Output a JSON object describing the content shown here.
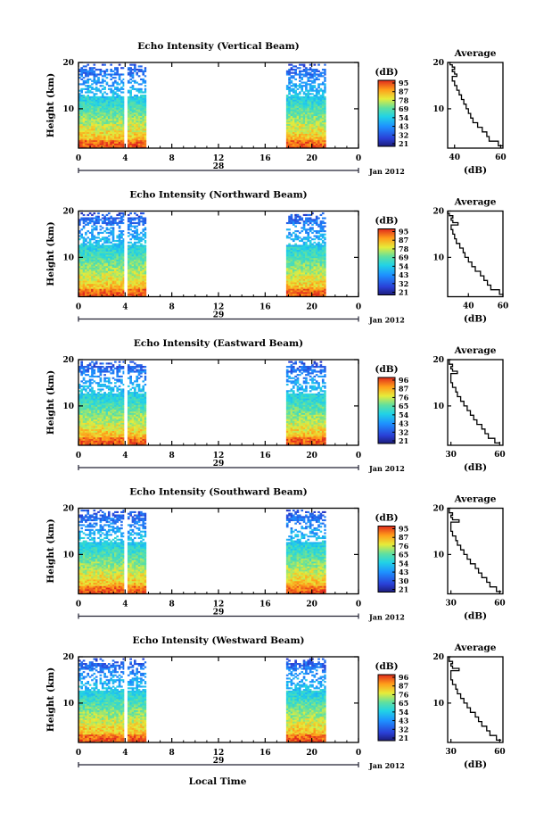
{
  "figure": {
    "time_axis_label": "Local Time",
    "date_label": "Jan 2012"
  },
  "chart_data": [
    {
      "type": "heatmap",
      "title": "Echo Intensity (Vertical Beam)",
      "ylabel": "Height (km)",
      "xlabel": "Local Time",
      "x_ticks": [
        "0",
        "4",
        "8",
        "12",
        "16",
        "20",
        "0"
      ],
      "day_label": "28",
      "y_ticks": [
        "20",
        "10"
      ],
      "xlim_hours": [
        0,
        24
      ],
      "ylim_km": [
        1.5,
        20
      ],
      "data_windows_hours": [
        [
          0,
          3.9
        ],
        [
          4.2,
          5.8
        ],
        [
          17.8,
          21.2
        ]
      ],
      "colorbar": {
        "title": "(dB)",
        "ticks": [
          "95",
          "87",
          "78",
          "69",
          "54",
          "43",
          "32",
          "21"
        ]
      },
      "profile": {
        "title": "Average",
        "xlabel": "(dB)",
        "x_ticks": [
          "40",
          "60"
        ],
        "xlim": [
          37,
          61
        ],
        "y_ticks": [
          "20",
          "10"
        ],
        "heights_km": [
          2,
          3,
          4,
          5,
          6,
          7,
          8,
          9,
          10,
          11,
          12,
          13,
          14,
          15,
          16,
          17,
          17.5,
          18,
          18.5,
          19,
          19.5,
          20
        ],
        "values_db": [
          61,
          59,
          55,
          54,
          52,
          50,
          48,
          47,
          46,
          45,
          44,
          43,
          42,
          41,
          40,
          39,
          41,
          40,
          39,
          40,
          39,
          38
        ]
      }
    },
    {
      "type": "heatmap",
      "title": "Echo Intensity (Northward Beam)",
      "ylabel": "Height (km)",
      "xlabel": "Local Time",
      "x_ticks": [
        "0",
        "4",
        "8",
        "12",
        "16",
        "20",
        "0"
      ],
      "day_label": "29",
      "y_ticks": [
        "20",
        "10"
      ],
      "xlim_hours": [
        0,
        24
      ],
      "ylim_km": [
        1.5,
        20
      ],
      "data_windows_hours": [
        [
          0,
          3.9
        ],
        [
          4.2,
          5.8
        ],
        [
          17.8,
          21.2
        ]
      ],
      "colorbar": {
        "title": "(dB)",
        "ticks": [
          "95",
          "87",
          "78",
          "69",
          "54",
          "43",
          "32",
          "21"
        ]
      },
      "profile": {
        "title": "Average",
        "xlabel": "(dB)",
        "x_ticks": [
          "40",
          "60"
        ],
        "xlim": [
          28,
          60
        ],
        "y_ticks": [
          "20",
          "10"
        ],
        "heights_km": [
          2,
          3,
          4,
          5,
          6,
          7,
          8,
          9,
          10,
          11,
          12,
          13,
          14,
          15,
          16,
          17,
          17.5,
          18,
          18.5,
          19,
          19.5,
          20
        ],
        "values_db": [
          60,
          58,
          53,
          51,
          49,
          47,
          44,
          42,
          40,
          38,
          37,
          35,
          33,
          32,
          31,
          30,
          34,
          31,
          30,
          31,
          29,
          28
        ]
      }
    },
    {
      "type": "heatmap",
      "title": "Echo Intensity (Eastward Beam)",
      "ylabel": "Height (km)",
      "xlabel": "Local Time",
      "x_ticks": [
        "0",
        "4",
        "8",
        "12",
        "16",
        "20",
        "0"
      ],
      "day_label": "29",
      "y_ticks": [
        "20",
        "10"
      ],
      "xlim_hours": [
        0,
        24
      ],
      "ylim_km": [
        1.5,
        20
      ],
      "data_windows_hours": [
        [
          0,
          3.9
        ],
        [
          4.2,
          5.8
        ],
        [
          17.8,
          21.2
        ]
      ],
      "colorbar": {
        "title": "(dB)",
        "ticks": [
          "96",
          "87",
          "76",
          "65",
          "54",
          "43",
          "32",
          "21"
        ]
      },
      "profile": {
        "title": "Average",
        "xlabel": "(dB)",
        "x_ticks": [
          "30",
          "60"
        ],
        "xlim": [
          28,
          62
        ],
        "y_ticks": [
          "20",
          "10"
        ],
        "heights_km": [
          2,
          3,
          4,
          5,
          6,
          7,
          8,
          9,
          10,
          11,
          12,
          13,
          14,
          15,
          16,
          17,
          17.5,
          18,
          18.5,
          19,
          19.5,
          20
        ],
        "values_db": [
          60,
          57,
          53,
          51,
          49,
          46,
          44,
          42,
          40,
          38,
          36,
          34,
          33,
          31,
          30,
          30,
          34,
          31,
          30,
          31,
          29,
          29
        ]
      }
    },
    {
      "type": "heatmap",
      "title": "Echo Intensity (Southward Beam)",
      "ylabel": "Height (km)",
      "xlabel": "Local Time",
      "x_ticks": [
        "0",
        "4",
        "8",
        "12",
        "16",
        "20",
        "0"
      ],
      "day_label": "29",
      "y_ticks": [
        "20",
        "10"
      ],
      "xlim_hours": [
        0,
        24
      ],
      "ylim_km": [
        1.5,
        20
      ],
      "data_windows_hours": [
        [
          0,
          3.9
        ],
        [
          4.2,
          5.8
        ],
        [
          17.8,
          21.2
        ]
      ],
      "colorbar": {
        "title": "(dB)",
        "ticks": [
          "95",
          "87",
          "76",
          "65",
          "54",
          "43",
          "30",
          "21"
        ]
      },
      "profile": {
        "title": "Average",
        "xlabel": "(dB)",
        "x_ticks": [
          "30",
          "60"
        ],
        "xlim": [
          28,
          62
        ],
        "y_ticks": [
          "20",
          "10"
        ],
        "heights_km": [
          2,
          3,
          4,
          5,
          6,
          7,
          8,
          9,
          10,
          11,
          12,
          13,
          14,
          15,
          16,
          17,
          17.5,
          18,
          18.5,
          19,
          19.5,
          20
        ],
        "values_db": [
          61,
          58,
          54,
          52,
          49,
          47,
          45,
          42,
          40,
          38,
          36,
          34,
          33,
          31,
          30,
          30,
          35,
          31,
          30,
          31,
          29,
          29
        ]
      }
    },
    {
      "type": "heatmap",
      "title": "Echo Intensity (Westward Beam)",
      "ylabel": "Height (km)",
      "xlabel": "Local Time",
      "x_ticks": [
        "0",
        "4",
        "8",
        "12",
        "16",
        "20",
        "0"
      ],
      "day_label": "29",
      "y_ticks": [
        "20",
        "10"
      ],
      "xlim_hours": [
        0,
        24
      ],
      "ylim_km": [
        1.5,
        20
      ],
      "data_windows_hours": [
        [
          0,
          3.9
        ],
        [
          4.2,
          5.8
        ],
        [
          17.8,
          21.2
        ]
      ],
      "colorbar": {
        "title": "(dB)",
        "ticks": [
          "96",
          "87",
          "76",
          "65",
          "54",
          "43",
          "32",
          "21"
        ]
      },
      "profile": {
        "title": "Average",
        "xlabel": "(dB)",
        "x_ticks": [
          "30",
          "60"
        ],
        "xlim": [
          28,
          62
        ],
        "y_ticks": [
          "20",
          "10"
        ],
        "heights_km": [
          2,
          3,
          4,
          5,
          6,
          7,
          8,
          9,
          10,
          11,
          12,
          13,
          14,
          15,
          16,
          17,
          17.5,
          18,
          18.5,
          19,
          19.5,
          20
        ],
        "values_db": [
          61,
          58,
          54,
          52,
          49,
          47,
          45,
          42,
          40,
          38,
          36,
          34,
          33,
          31,
          30,
          30,
          35,
          31,
          30,
          31,
          29,
          29
        ]
      }
    }
  ]
}
